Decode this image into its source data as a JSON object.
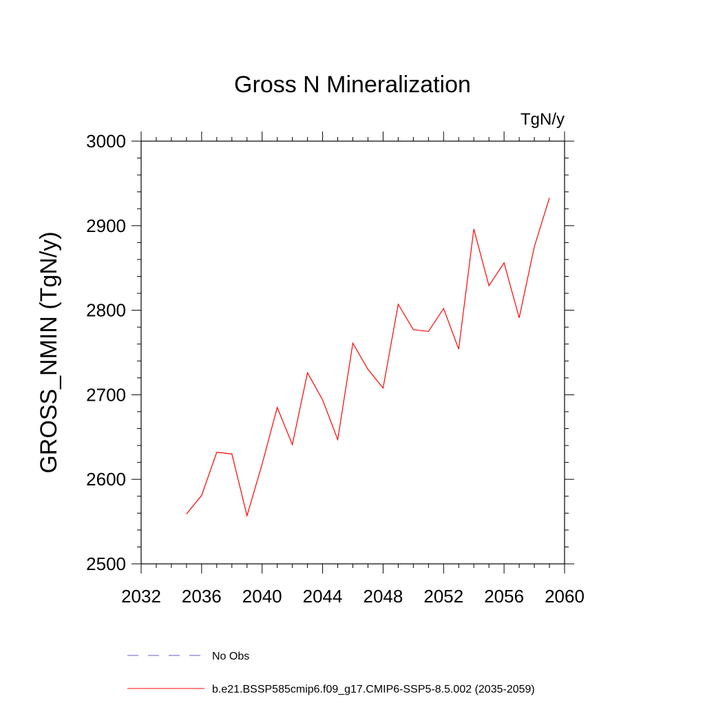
{
  "chart_data": {
    "type": "line",
    "title": "Gross N Mineralization",
    "units_label": "TgN/y",
    "ylabel": "GROSS_NMIN  (TgN/y)",
    "xlabel": "",
    "xlim": [
      2032,
      2060
    ],
    "ylim": [
      2500,
      3000
    ],
    "x_ticks": [
      2032,
      2036,
      2040,
      2044,
      2048,
      2052,
      2056,
      2060
    ],
    "y_ticks": [
      2500,
      2600,
      2700,
      2800,
      2900,
      3000
    ],
    "grid": false,
    "legend_position": "bottom",
    "series": [
      {
        "name": "No Obs",
        "color": "#6a5acd",
        "style": "dashed",
        "x": [],
        "values": []
      },
      {
        "name": "b.e21.BSSP585cmip6.f09_g17.CMIP6-SSP5-8.5.002 (2035-2059)",
        "color": "#ff0000",
        "style": "solid",
        "x": [
          2035,
          2036,
          2037,
          2038,
          2039,
          2040,
          2041,
          2042,
          2043,
          2044,
          2045,
          2046,
          2047,
          2048,
          2049,
          2050,
          2051,
          2052,
          2053,
          2054,
          2055,
          2056,
          2057,
          2058,
          2059
        ],
        "values": [
          2559,
          2581,
          2632,
          2630,
          2557,
          2618,
          2685,
          2641,
          2726,
          2694,
          2647,
          2761,
          2730,
          2708,
          2807,
          2777,
          2775,
          2802,
          2754,
          2896,
          2829,
          2856,
          2791,
          2875,
          2933
        ]
      }
    ]
  }
}
